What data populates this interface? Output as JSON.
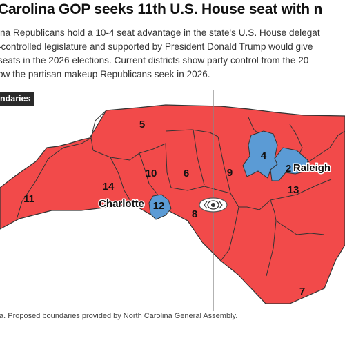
{
  "header": {
    "title": "Carolina GOP seeks 11th U.S. House seat with n",
    "description_lines": [
      "ina Republicans hold a 10-4 seat advantage in the state's U.S. House delegat",
      "-controlled legislature and supported by President Donald Trump would give",
      "seats in the 2026 elections. Current districts show party control from the 20",
      "ow the partisan makeup Republicans seek in 2026."
    ]
  },
  "map": {
    "panel_label": "ndaries",
    "districts": [
      {
        "id": "5",
        "label": "5",
        "party": "R"
      },
      {
        "id": "10",
        "label": "10",
        "party": "R"
      },
      {
        "id": "6",
        "label": "6",
        "party": "R"
      },
      {
        "id": "14",
        "label": "14",
        "party": "R"
      },
      {
        "id": "11",
        "label": "11",
        "party": "R"
      },
      {
        "id": "12",
        "label": "12",
        "party": "D"
      },
      {
        "id": "8",
        "label": "8",
        "party": "R"
      },
      {
        "id": "9",
        "label": "9",
        "party": "R"
      },
      {
        "id": "4",
        "label": "4",
        "party": "D"
      },
      {
        "id": "2",
        "label": "2",
        "party": "D"
      },
      {
        "id": "13",
        "label": "13",
        "party": "R"
      },
      {
        "id": "7",
        "label": "7",
        "party": "R"
      }
    ],
    "cities": [
      {
        "name": "Charlotte"
      },
      {
        "name": "Raleigh"
      }
    ],
    "colors": {
      "republican": "#f24a4a",
      "democrat": "#5b9bd5",
      "border": "#333333",
      "slider_line": "#888888"
    },
    "slider_icon": "eye-slider-handle-icon"
  },
  "footer": {
    "source": "a. Proposed boundaries provided by North Carolina General Assembly."
  }
}
